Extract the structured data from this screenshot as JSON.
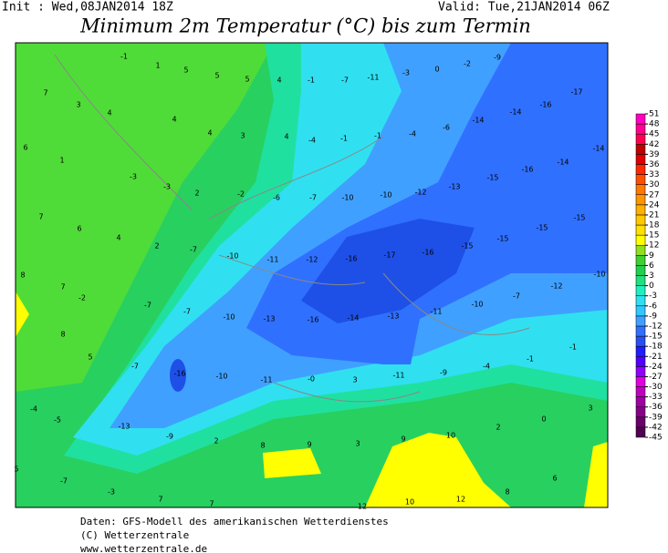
{
  "header": {
    "init": "Init : Wed,08JAN2014 18Z",
    "valid": "Valid: Tue,21JAN2014 06Z",
    "title": "Minimum 2m Temperatur (°C) bis zum Termin"
  },
  "footer": [
    "Daten: GFS-Modell des amerikanischen Wetterdienstes",
    "(C) Wetterzentrale",
    "www.wetterzentrale.de"
  ],
  "colorbar": {
    "ticks": [
      -45,
      -42,
      -39,
      -36,
      -33,
      -30,
      -27,
      -24,
      -21,
      -18,
      -15,
      -12,
      -9,
      -6,
      -3,
      0,
      3,
      6,
      9,
      12,
      15,
      18,
      21,
      24,
      27,
      30,
      33,
      36,
      39,
      42,
      45,
      48,
      51
    ],
    "colors": [
      "#500050",
      "#6a006a",
      "#880088",
      "#a000a0",
      "#c000c0",
      "#e000e0",
      "#9000ff",
      "#5000ff",
      "#1e1eff",
      "#2850f0",
      "#3070ff",
      "#40a0ff",
      "#30c8ff",
      "#30e0f0",
      "#20f0c0",
      "#20e080",
      "#20d050",
      "#40d030",
      "#90e020",
      "#ffff00",
      "#ffe000",
      "#ffc800",
      "#ffb000",
      "#ff9600",
      "#ff7800",
      "#ff5000",
      "#ff2800",
      "#e00000",
      "#c00000",
      "#ff0050",
      "#ff0090",
      "#ff00c0"
    ]
  },
  "map_labels": [
    -1,
    1,
    5,
    5,
    5,
    4,
    -1,
    -7,
    -11,
    -3,
    0,
    -2,
    -9,
    7,
    3,
    4,
    4,
    4,
    3,
    4,
    -4,
    -1,
    -1,
    -4,
    -6,
    -14,
    -14,
    -16,
    -17,
    6,
    1,
    -3,
    -3,
    2,
    -2,
    -6,
    -7,
    -10,
    -10,
    -12,
    -13,
    -15,
    -16,
    -14,
    -14,
    7,
    6,
    4,
    2,
    -7,
    -10,
    -11,
    -12,
    -16,
    -17,
    -16,
    -15,
    -15,
    -15,
    -15,
    8,
    7,
    -2,
    -7,
    -7,
    -10,
    -13,
    -16,
    -14,
    -13,
    -11,
    -10,
    -7,
    -12,
    -10,
    8,
    5,
    -7,
    -16,
    -10,
    -11,
    "-0",
    3,
    -11,
    -9,
    -4,
    -1,
    -1,
    -4,
    -5,
    -13,
    -9,
    2,
    8,
    9,
    3,
    9,
    10,
    2,
    0,
    3,
    5,
    -7,
    -3,
    7,
    7,
    6,
    8,
    12,
    10,
    12
  ]
}
